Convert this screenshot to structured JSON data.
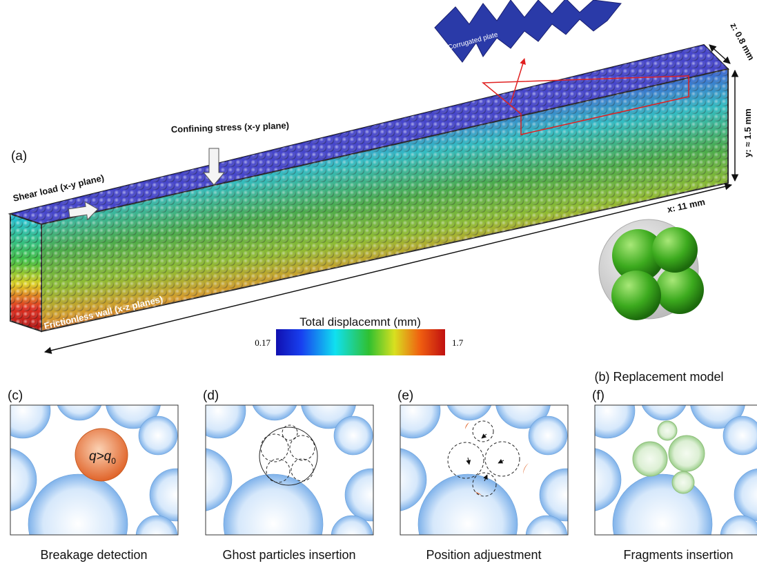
{
  "panel_a": {
    "label": "(a)",
    "shear_load": "Shear load (x-y plane)",
    "confining_stress": "Confining stress (x-y plane)",
    "corrugated_plate": "Corrugated plate",
    "z_dim": "z: 0.8 mm",
    "y_dim": "y: ≈ 1.5 mm",
    "x_dim": "x: 11 mm",
    "wall": "Frictionless wall (x-z planes)",
    "colorbar": {
      "title": "Total displacemnt (mm)",
      "min": "0.17",
      "max": "1.7"
    }
  },
  "panel_b": {
    "caption": "(b) Replacement model"
  },
  "criterion": {
    "text": "q>q",
    "subscript": "0"
  },
  "steps": [
    {
      "label": "(c)",
      "caption": "Breakage detection"
    },
    {
      "label": "(d)",
      "caption": "Ghost particles insertion"
    },
    {
      "label": "(e)",
      "caption": "Position adjuestment"
    },
    {
      "label": "(f)",
      "caption": "Fragments insertion"
    }
  ]
}
